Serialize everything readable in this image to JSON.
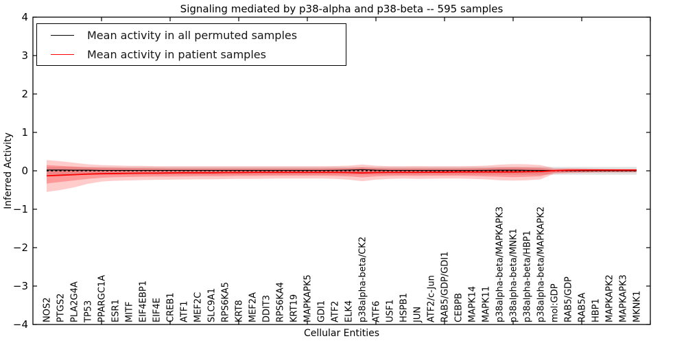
{
  "title": "Signaling mediated by p38-alpha and p38-beta -- 595 samples",
  "axes": {
    "x_label": "Cellular Entities",
    "y_label": "Inferred Activity",
    "y_min": -4,
    "y_max": 4,
    "y_tick_labels": [
      "4",
      "3",
      "2",
      "1",
      "0",
      "−1",
      "−2",
      "−3",
      "−4"
    ],
    "y_tick_values": [
      4,
      3,
      2,
      1,
      0,
      -1,
      -2,
      -3,
      -4
    ]
  },
  "legend": {
    "entries": [
      {
        "label": "Mean activity in all permuted samples",
        "color": "#000000"
      },
      {
        "label": "Mean activity in patient samples",
        "color": "#ff0000"
      }
    ]
  },
  "chart_data": {
    "type": "line",
    "title": "Signaling mediated by p38-alpha and p38-beta -- 595 samples",
    "xlabel": "Cellular Entities",
    "ylabel": "Inferred Activity",
    "ylim": [
      -4,
      4
    ],
    "grid": false,
    "legend_position": "upper left",
    "categories": [
      "NOS2",
      "PTGS2",
      "PLA2G4A",
      "TP53",
      "PPARGC1A",
      "ESR1",
      "MITF",
      "EIF4EBP1",
      "EIF4E",
      "CREB1",
      "ATF1",
      "MEF2C",
      "SLC9A1",
      "RPS6KA5",
      "KRT8",
      "MEF2A",
      "DDIT3",
      "RPS6KA4",
      "KRT19",
      "MAPKAPK5",
      "GDI1",
      "ATF2",
      "ELK4",
      "p38alpha-beta/CK2",
      "ATF6",
      "USF1",
      "HSPB1",
      "JUN",
      "ATF2/c-Jun",
      "RAB5/GDP/GDI1",
      "CEBPB",
      "MAPK14",
      "MAPK11",
      "p38alpha-beta/MAPKAPK3",
      "p38alpha-beta/MNK1",
      "p38alpha-beta/HBP1",
      "p38alpha-beta/MAPKAPK2",
      "mol:GDP",
      "RAB5/GDP",
      "RAB5A",
      "HBP1",
      "MAPKAPK2",
      "MAPKAPK3",
      "MKNK1"
    ],
    "series": [
      {
        "name": "Mean activity in all permuted samples",
        "color": "#000000",
        "width": 1.2,
        "values": [
          0.02,
          0.02,
          0.015,
          0.015,
          0.01,
          0.01,
          0.01,
          0.01,
          0.01,
          0.01,
          0.01,
          0.01,
          0.01,
          0.01,
          0.01,
          0.01,
          0.01,
          0.01,
          0.01,
          0.01,
          0.01,
          0.012,
          0.018,
          0.03,
          0.015,
          0.01,
          0.01,
          0.01,
          0.01,
          0.01,
          0.01,
          0.01,
          0.012,
          0.015,
          0.015,
          0.012,
          0.01,
          0.008,
          0.005,
          0.005,
          0.005,
          0.005,
          0.005,
          0.005
        ]
      },
      {
        "name": "Mean activity in patient samples",
        "color": "#ff0000",
        "width": 1.8,
        "values": [
          -0.13,
          -0.115,
          -0.1,
          -0.085,
          -0.075,
          -0.07,
          -0.065,
          -0.06,
          -0.06,
          -0.055,
          -0.05,
          -0.05,
          -0.05,
          -0.045,
          -0.045,
          -0.04,
          -0.04,
          -0.04,
          -0.04,
          -0.04,
          -0.04,
          -0.04,
          -0.045,
          -0.055,
          -0.045,
          -0.04,
          -0.04,
          -0.04,
          -0.035,
          -0.035,
          -0.03,
          -0.03,
          -0.03,
          -0.03,
          -0.03,
          -0.025,
          -0.02,
          0.005,
          0.015,
          0.02,
          0.02,
          0.02,
          0.02,
          0.02
        ]
      }
    ],
    "bands": [
      {
        "name": "permuted-samples-range",
        "color": "#c9c9c9",
        "opacity": 0.55,
        "top": 0.1,
        "bottom": -0.1
      },
      {
        "name": "patient-samples-outer-band",
        "color": "#ff0000",
        "opacity": 0.2,
        "top": [
          0.28,
          0.25,
          0.21,
          0.17,
          0.15,
          0.14,
          0.13,
          0.13,
          0.12,
          0.12,
          0.12,
          0.12,
          0.12,
          0.12,
          0.12,
          0.12,
          0.12,
          0.12,
          0.12,
          0.12,
          0.12,
          0.125,
          0.135,
          0.165,
          0.135,
          0.12,
          0.12,
          0.125,
          0.12,
          0.12,
          0.12,
          0.125,
          0.135,
          0.16,
          0.175,
          0.17,
          0.15,
          0.065,
          0.07,
          0.065,
          0.055,
          0.05,
          0.045,
          0.045
        ],
        "bottom": [
          -0.55,
          -0.5,
          -0.43,
          -0.34,
          -0.28,
          -0.26,
          -0.25,
          -0.24,
          -0.235,
          -0.23,
          -0.225,
          -0.22,
          -0.22,
          -0.215,
          -0.21,
          -0.21,
          -0.205,
          -0.2,
          -0.2,
          -0.2,
          -0.2,
          -0.21,
          -0.23,
          -0.27,
          -0.23,
          -0.21,
          -0.2,
          -0.21,
          -0.205,
          -0.2,
          -0.2,
          -0.21,
          -0.22,
          -0.245,
          -0.255,
          -0.245,
          -0.22,
          -0.075,
          -0.06,
          -0.055,
          -0.05,
          -0.045,
          -0.045,
          -0.04
        ]
      },
      {
        "name": "patient-samples-inner-band",
        "color": "#ff0000",
        "opacity": 0.25,
        "top": [
          0.15,
          0.13,
          0.11,
          0.09,
          0.08,
          0.075,
          0.07,
          0.07,
          0.065,
          0.06,
          0.06,
          0.06,
          0.06,
          0.06,
          0.06,
          0.06,
          0.06,
          0.06,
          0.06,
          0.06,
          0.06,
          0.065,
          0.07,
          0.09,
          0.07,
          0.06,
          0.06,
          0.06,
          0.06,
          0.06,
          0.06,
          0.065,
          0.07,
          0.085,
          0.09,
          0.085,
          0.075,
          0.04,
          0.04,
          0.035,
          0.03,
          0.03,
          0.03,
          0.03
        ],
        "bottom": [
          -0.33,
          -0.29,
          -0.25,
          -0.21,
          -0.18,
          -0.165,
          -0.16,
          -0.155,
          -0.15,
          -0.15,
          -0.145,
          -0.14,
          -0.14,
          -0.14,
          -0.135,
          -0.135,
          -0.13,
          -0.13,
          -0.13,
          -0.13,
          -0.13,
          -0.135,
          -0.145,
          -0.17,
          -0.145,
          -0.135,
          -0.13,
          -0.135,
          -0.13,
          -0.13,
          -0.13,
          -0.135,
          -0.145,
          -0.155,
          -0.165,
          -0.155,
          -0.14,
          -0.05,
          -0.04,
          -0.035,
          -0.03,
          -0.03,
          -0.03,
          -0.03
        ]
      }
    ],
    "zero_line": {
      "value": 0,
      "style": "dashed",
      "color": "#000000"
    }
  }
}
